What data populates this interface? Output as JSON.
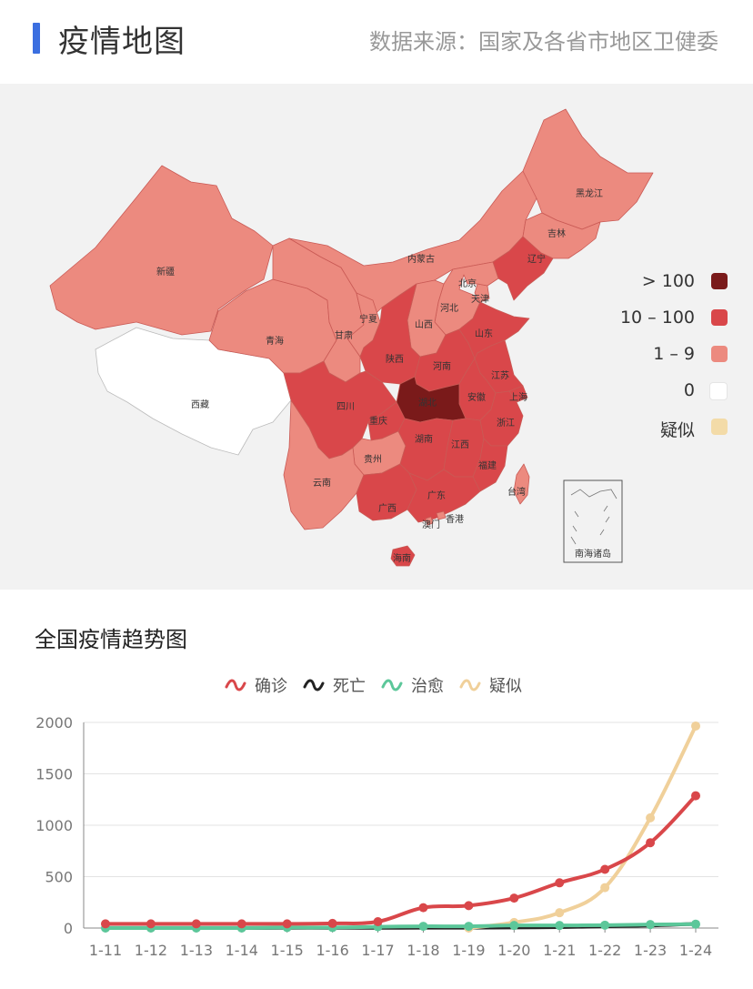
{
  "header": {
    "title": "疫情地图",
    "source": "数据来源：国家及各省市地区卫健委"
  },
  "map": {
    "provinces": [
      {
        "key": "xinjiang",
        "name": "新疆",
        "level": "1-9"
      },
      {
        "key": "xizang",
        "name": "西藏",
        "level": "0"
      },
      {
        "key": "qinghai",
        "name": "青海",
        "level": "1-9"
      },
      {
        "key": "gansu",
        "name": "甘肃",
        "level": "1-9"
      },
      {
        "key": "neimenggu",
        "name": "内蒙古",
        "level": "1-9"
      },
      {
        "key": "heilongjiang",
        "name": "黑龙江",
        "level": "1-9"
      },
      {
        "key": "jilin",
        "name": "吉林",
        "level": "1-9"
      },
      {
        "key": "liaoning",
        "name": "辽宁",
        "level": "10-100"
      },
      {
        "key": "beijing",
        "name": "北京",
        "level": "10-100"
      },
      {
        "key": "tianjin",
        "name": "天津",
        "level": "1-9"
      },
      {
        "key": "hebei",
        "name": "河北",
        "level": "1-9"
      },
      {
        "key": "shanxi",
        "name": "山西",
        "level": "1-9"
      },
      {
        "key": "ningxia",
        "name": "宁夏",
        "level": "1-9"
      },
      {
        "key": "shaanxi",
        "name": "陕西",
        "level": "10-100"
      },
      {
        "key": "henan",
        "name": "河南",
        "level": "10-100"
      },
      {
        "key": "shandong",
        "name": "山东",
        "level": "10-100"
      },
      {
        "key": "jiangsu",
        "name": "江苏",
        "level": "10-100"
      },
      {
        "key": "anhui",
        "name": "安徽",
        "level": "10-100"
      },
      {
        "key": "shanghai",
        "name": "上海",
        "level": "10-100"
      },
      {
        "key": "hubei",
        "name": "湖北",
        "level": ">100"
      },
      {
        "key": "sichuan",
        "name": "四川",
        "level": "10-100"
      },
      {
        "key": "chongqing",
        "name": "重庆",
        "level": "10-100"
      },
      {
        "key": "guizhou",
        "name": "贵州",
        "level": "1-9"
      },
      {
        "key": "yunnan",
        "name": "云南",
        "level": "1-9"
      },
      {
        "key": "hunan",
        "name": "湖南",
        "level": "10-100"
      },
      {
        "key": "jiangxi",
        "name": "江西",
        "level": "10-100"
      },
      {
        "key": "zhejiang",
        "name": "浙江",
        "level": "10-100"
      },
      {
        "key": "fujian",
        "name": "福建",
        "level": "10-100"
      },
      {
        "key": "guangxi",
        "name": "广西",
        "level": "10-100"
      },
      {
        "key": "guangdong",
        "name": "广东",
        "level": "10-100"
      },
      {
        "key": "taiwan",
        "name": "台湾",
        "level": "1-9"
      },
      {
        "key": "aomen",
        "name": "澳门",
        "level": "1-9"
      },
      {
        "key": "xianggang",
        "name": "香港",
        "level": "1-9"
      },
      {
        "key": "hainan",
        "name": "海南",
        "level": "10-100"
      }
    ],
    "inset_label": "南海诸岛",
    "legend": [
      {
        "label": "> 100",
        "color": "#7a1a1a"
      },
      {
        "label": "10 – 100",
        "color": "#d9474a"
      },
      {
        "label": "1 – 9",
        "color": "#ec8a7f"
      },
      {
        "label": "0",
        "color": "#ffffff"
      },
      {
        "label": "疑似",
        "color": "#f3dba8"
      }
    ]
  },
  "trend": {
    "title": "全国疫情趋势图",
    "legend": [
      {
        "name": "确诊",
        "color": "#d9474a"
      },
      {
        "name": "死亡",
        "color": "#222222"
      },
      {
        "name": "治愈",
        "color": "#5cc79a"
      },
      {
        "name": "疑似",
        "color": "#f0d09a"
      }
    ]
  },
  "chart_data": {
    "type": "line",
    "x": [
      "1-11",
      "1-12",
      "1-13",
      "1-14",
      "1-15",
      "1-16",
      "1-17",
      "1-18",
      "1-19",
      "1-20",
      "1-21",
      "1-22",
      "1-23",
      "1-24"
    ],
    "ylim": [
      0,
      2000
    ],
    "yticks": [
      "0",
      "500",
      "1000",
      "1500",
      "2000"
    ],
    "grid": true,
    "legend_position": "top-center",
    "series": [
      {
        "name": "确诊",
        "color": "#d9474a",
        "values": [
          41,
          41,
          41,
          41,
          41,
          45,
          62,
          198,
          218,
          291,
          440,
          571,
          830,
          1287
        ]
      },
      {
        "name": "死亡",
        "color": "#222222",
        "values": [
          1,
          1,
          1,
          1,
          2,
          2,
          2,
          3,
          3,
          6,
          9,
          17,
          25,
          41
        ]
      },
      {
        "name": "治愈",
        "color": "#5cc79a",
        "values": [
          0,
          0,
          0,
          0,
          5,
          5,
          12,
          17,
          17,
          25,
          25,
          28,
          34,
          38
        ]
      },
      {
        "name": "疑似",
        "color": "#f0d09a",
        "values": [
          null,
          null,
          null,
          null,
          null,
          null,
          null,
          null,
          0,
          54,
          149,
          393,
          1072,
          1965
        ]
      }
    ]
  }
}
